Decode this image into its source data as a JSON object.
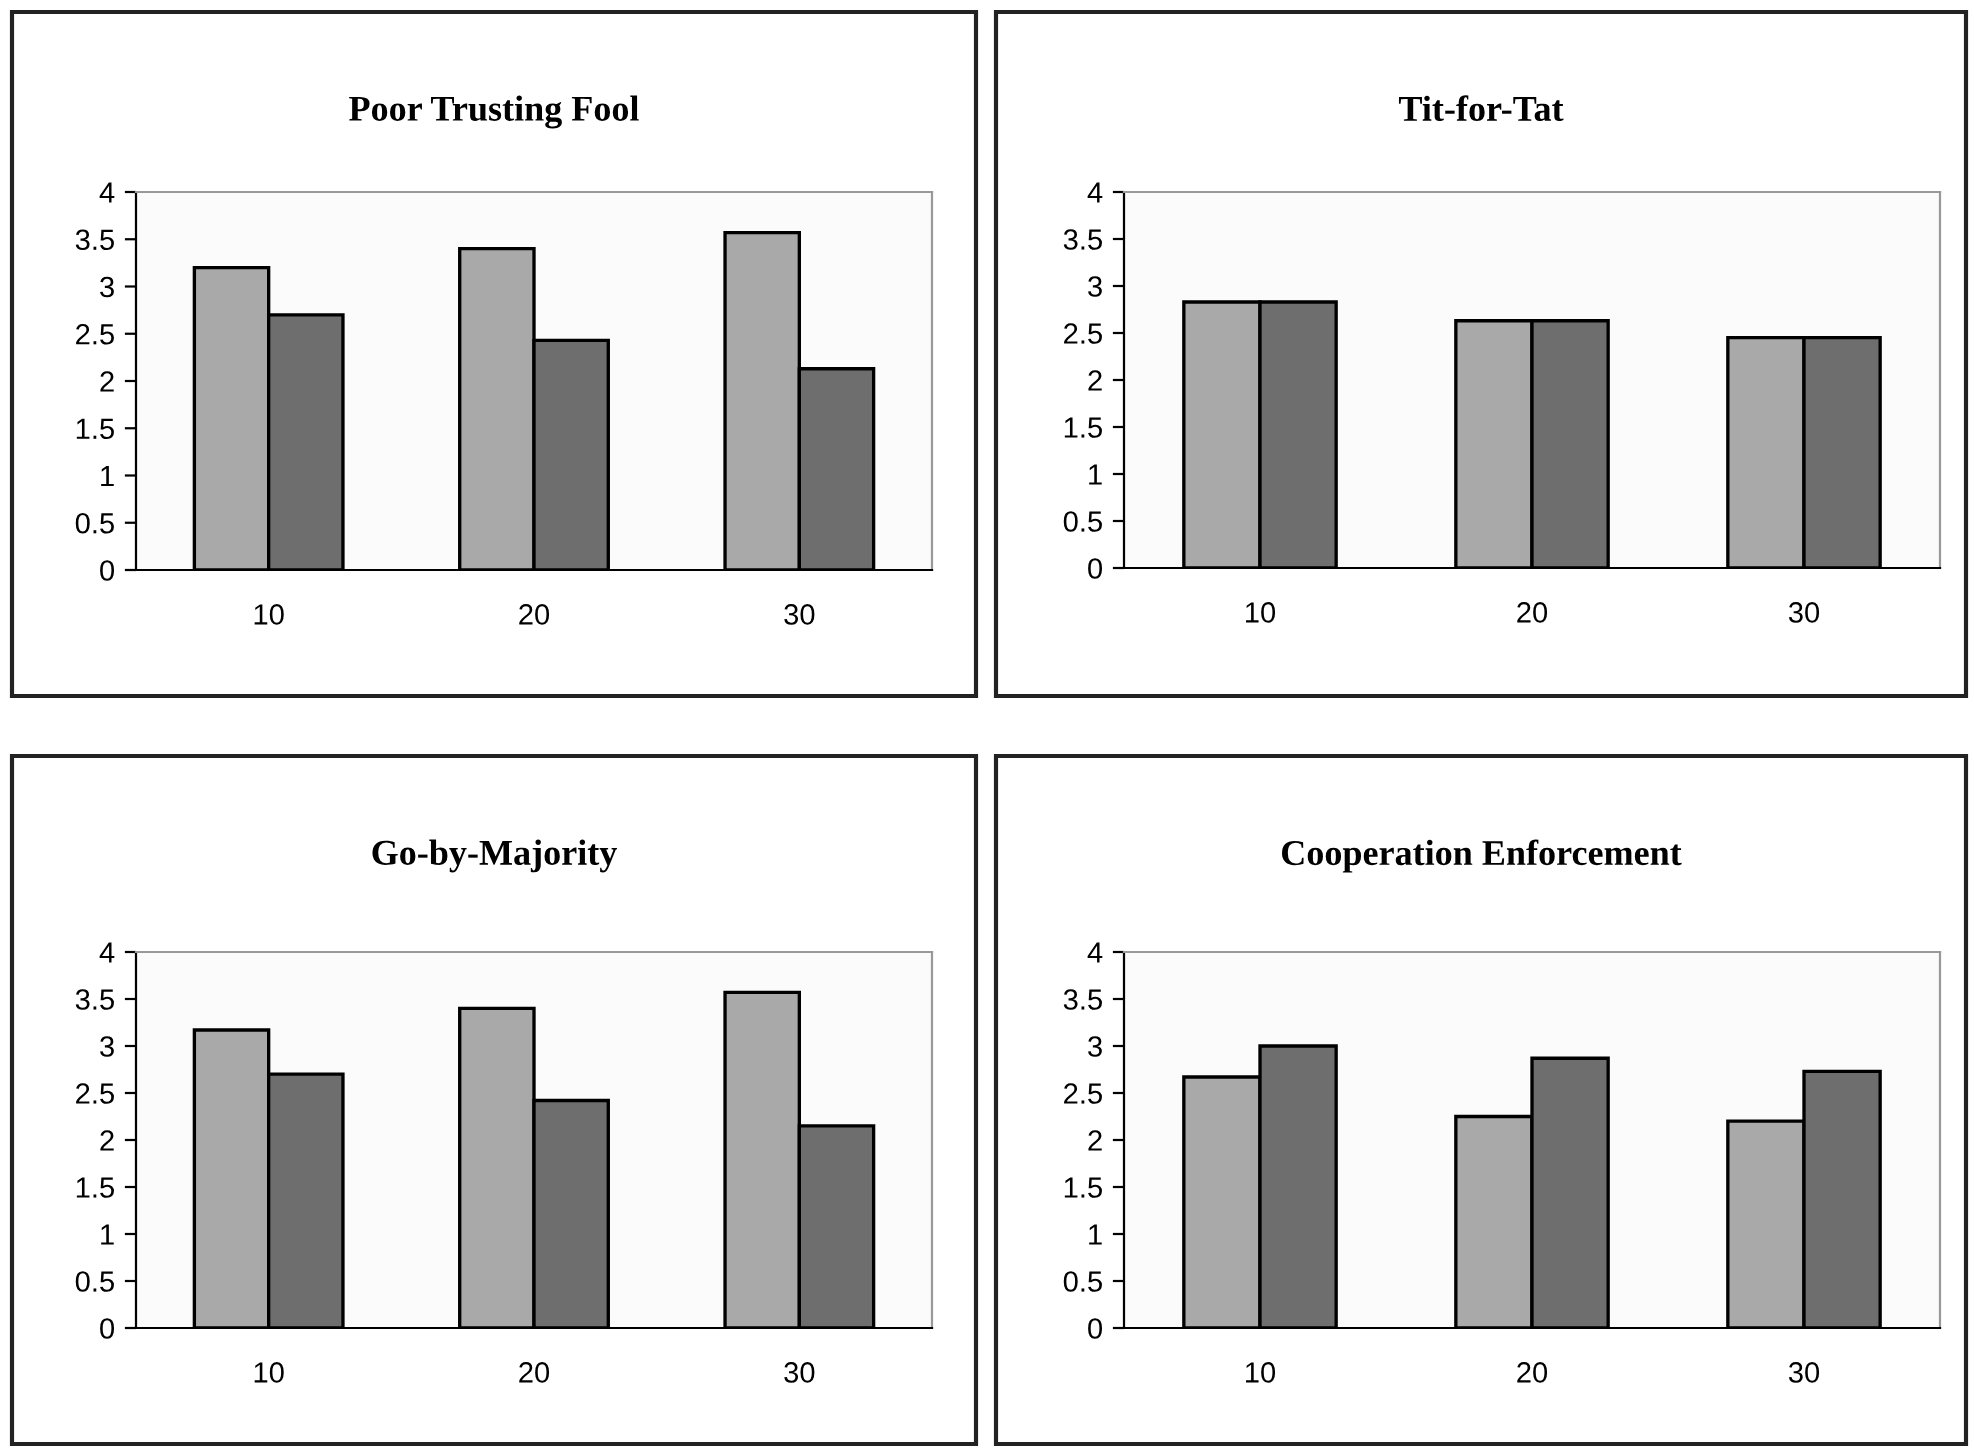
{
  "chart_data": [
    {
      "type": "bar",
      "title": "Poor Trusting Fool",
      "categories": [
        "10",
        "20",
        "30"
      ],
      "series": [
        {
          "color": "#a9a9a9",
          "values": [
            3.2,
            3.4,
            3.57
          ]
        },
        {
          "color": "#6e6e6e",
          "values": [
            2.7,
            2.43,
            2.13
          ]
        }
      ],
      "ylim": [
        0,
        4
      ],
      "yticks": [
        0,
        0.5,
        1,
        1.5,
        2,
        2.5,
        3,
        3.5,
        4
      ]
    },
    {
      "type": "bar",
      "title": "Tit-for-Tat",
      "categories": [
        "10",
        "20",
        "30"
      ],
      "series": [
        {
          "color": "#a9a9a9",
          "values": [
            2.83,
            2.63,
            2.45
          ]
        },
        {
          "color": "#6e6e6e",
          "values": [
            2.83,
            2.63,
            2.45
          ]
        }
      ],
      "ylim": [
        0,
        4
      ],
      "yticks": [
        0,
        0.5,
        1,
        1.5,
        2,
        2.5,
        3,
        3.5,
        4
      ]
    },
    {
      "type": "bar",
      "title": "Go-by-Majority",
      "categories": [
        "10",
        "20",
        "30"
      ],
      "series": [
        {
          "color": "#a9a9a9",
          "values": [
            3.17,
            3.4,
            3.57
          ]
        },
        {
          "color": "#6e6e6e",
          "values": [
            2.7,
            2.42,
            2.15
          ]
        }
      ],
      "ylim": [
        0,
        4
      ],
      "yticks": [
        0,
        0.5,
        1,
        1.5,
        2,
        2.5,
        3,
        3.5,
        4
      ]
    },
    {
      "type": "bar",
      "title": "Cooperation Enforcement",
      "categories": [
        "10",
        "20",
        "30"
      ],
      "series": [
        {
          "color": "#a9a9a9",
          "values": [
            2.67,
            2.25,
            2.2
          ]
        },
        {
          "color": "#6e6e6e",
          "values": [
            3.0,
            2.87,
            2.73
          ]
        }
      ],
      "ylim": [
        0,
        4
      ],
      "yticks": [
        0,
        0.5,
        1,
        1.5,
        2,
        2.5,
        3,
        3.5,
        4
      ]
    }
  ]
}
